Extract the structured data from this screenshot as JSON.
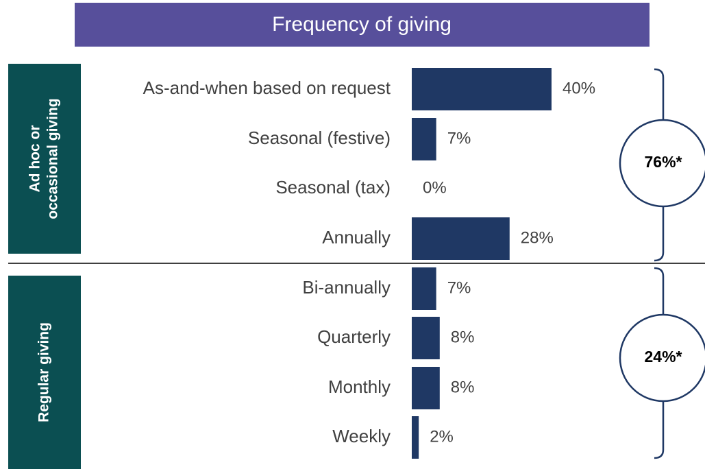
{
  "chart_data": {
    "type": "bar",
    "title": "Frequency of giving",
    "categories": [
      "As-and-when based on request",
      "Seasonal (festive)",
      "Seasonal (tax)",
      "Annually",
      "Bi-annually",
      "Quarterly",
      "Monthly",
      "Weekly"
    ],
    "values": [
      40,
      7,
      0,
      28,
      7,
      8,
      8,
      2
    ],
    "value_labels": [
      "40%",
      "7%",
      "0%",
      "28%",
      "7%",
      "8%",
      "8%",
      "2%"
    ],
    "color": "#1f3864",
    "groups": [
      {
        "label_lines": [
          "Ad hoc or",
          "occasional giving"
        ],
        "total": "76%*"
      },
      {
        "label_lines": [
          "Regular giving"
        ],
        "total": "24%*"
      }
    ]
  }
}
